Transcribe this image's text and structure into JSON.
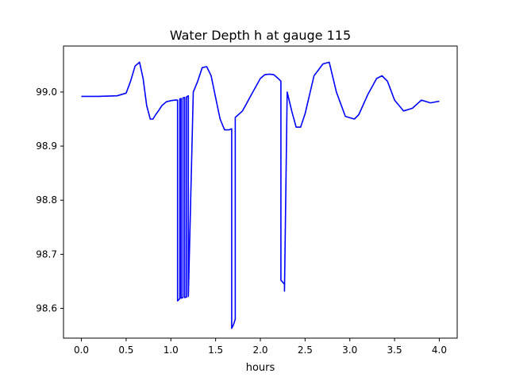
{
  "chart_data": {
    "type": "line",
    "title": "Water Depth h at gauge 115",
    "xlabel": "hours",
    "ylabel": "",
    "xlim": [
      -0.2,
      4.2
    ],
    "ylim": [
      98.545,
      99.085
    ],
    "xticks": [
      0.0,
      0.5,
      1.0,
      1.5,
      2.0,
      2.5,
      3.0,
      3.5,
      4.0
    ],
    "xtick_labels": [
      "0.0",
      "0.5",
      "1.0",
      "1.5",
      "2.0",
      "2.5",
      "3.0",
      "3.5",
      "4.0"
    ],
    "yticks": [
      98.6,
      98.7,
      98.8,
      98.9,
      99.0
    ],
    "ytick_labels": [
      "98.6",
      "98.7",
      "98.8",
      "98.9",
      "99.0"
    ],
    "grid": false,
    "series": [
      {
        "color": "#0000ff",
        "x": [
          0.0,
          0.2,
          0.4,
          0.5,
          0.55,
          0.6,
          0.65,
          0.69,
          0.73,
          0.77,
          0.8,
          0.83,
          0.86,
          0.9,
          0.95,
          1.0,
          1.05,
          1.075,
          1.075,
          1.1,
          1.1,
          1.115,
          1.115,
          1.135,
          1.135,
          1.155,
          1.155,
          1.175,
          1.175,
          1.195,
          1.195,
          1.25,
          1.3,
          1.35,
          1.4,
          1.45,
          1.5,
          1.55,
          1.6,
          1.65,
          1.68,
          1.68,
          1.7,
          1.72,
          1.72,
          1.8,
          1.9,
          2.0,
          2.05,
          2.1,
          2.15,
          2.2,
          2.23,
          2.23,
          2.27,
          2.27,
          2.3,
          2.35,
          2.4,
          2.45,
          2.5,
          2.6,
          2.7,
          2.77,
          2.85,
          2.95,
          3.05,
          3.1,
          3.2,
          3.3,
          3.36,
          3.42,
          3.5,
          3.6,
          3.7,
          3.8,
          3.9,
          4.0
        ],
        "y": [
          98.992,
          98.992,
          98.993,
          98.998,
          99.02,
          99.048,
          99.055,
          99.025,
          98.975,
          98.95,
          98.95,
          98.958,
          98.965,
          98.975,
          98.982,
          98.984,
          98.985,
          98.985,
          98.614,
          98.618,
          98.987,
          98.988,
          98.619,
          98.62,
          98.989,
          98.99,
          98.62,
          98.621,
          98.991,
          98.993,
          98.622,
          99.0,
          99.02,
          99.045,
          99.047,
          99.03,
          98.99,
          98.95,
          98.93,
          98.93,
          98.932,
          98.563,
          98.57,
          98.58,
          98.953,
          98.965,
          98.995,
          99.025,
          99.032,
          99.033,
          99.032,
          99.025,
          99.02,
          98.652,
          98.645,
          98.632,
          99.0,
          98.965,
          98.935,
          98.935,
          98.96,
          99.03,
          99.052,
          99.055,
          99.0,
          98.955,
          98.95,
          98.958,
          98.995,
          99.025,
          99.03,
          99.02,
          98.985,
          98.965,
          98.97,
          98.985,
          98.98,
          98.983
        ]
      }
    ]
  }
}
